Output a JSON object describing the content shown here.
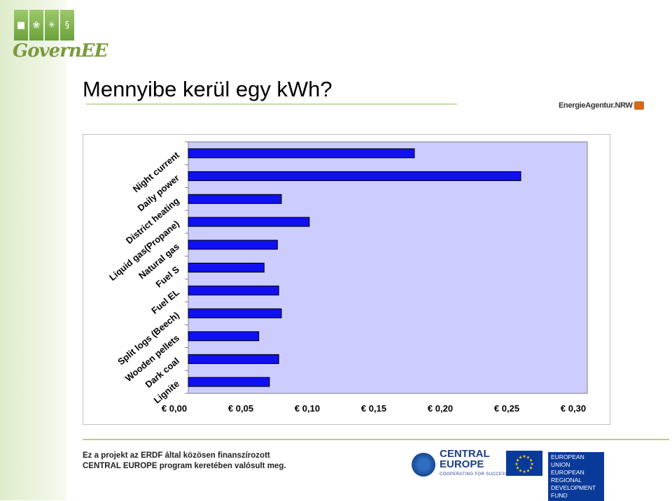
{
  "logo": {
    "icons": [
      "building-icon",
      "leaf-icon",
      "sun-icon",
      "paragraph-icon"
    ],
    "glyphs": [
      "■",
      "❀",
      "☀",
      "§"
    ],
    "text": "GovernEE"
  },
  "slide": {
    "title": "Mennyibe kerül egy kWh?",
    "agency": "EnergieAgentur.NRW"
  },
  "footer": {
    "line1": "Ez a projekt az ERDF által közösen finanszírozott",
    "line2": "CENTRAL EUROPE  program keretében valósult meg.",
    "ce_line1": "CENTRAL",
    "ce_line2": "EUROPE",
    "ce_tagline": "COOPERATING FOR SUCCESS.",
    "eu_line1": "EUROPEAN UNION",
    "eu_line2": "EUROPEAN REGIONAL",
    "eu_line3": "DEVELOPMENT FUND"
  },
  "chart_data": {
    "type": "bar",
    "orientation": "horizontal",
    "categories": [
      "Night current",
      "Daily power",
      "District heating",
      "Liquid gas(Propane)",
      "Natural gas",
      "Fuel S",
      "Fuel EL",
      "Split logs (Beech)",
      "Wooden pellets",
      "Dark coal",
      "Lignite"
    ],
    "values": [
      0.17,
      0.25,
      0.07,
      0.091,
      0.067,
      0.057,
      0.068,
      0.07,
      0.053,
      0.068,
      0.061
    ],
    "xlim": [
      0,
      0.3
    ],
    "ticks": [
      "€ 0,00",
      "€ 0,05",
      "€ 0,10",
      "€ 0,15",
      "€ 0,20",
      "€ 0,25",
      "€ 0,30"
    ],
    "tick_values": [
      0,
      0.05,
      0.1,
      0.15,
      0.2,
      0.25,
      0.3
    ],
    "bar_color": "#1010f0",
    "plot_bg": "#ccccff",
    "grid": false,
    "legend": "none"
  }
}
